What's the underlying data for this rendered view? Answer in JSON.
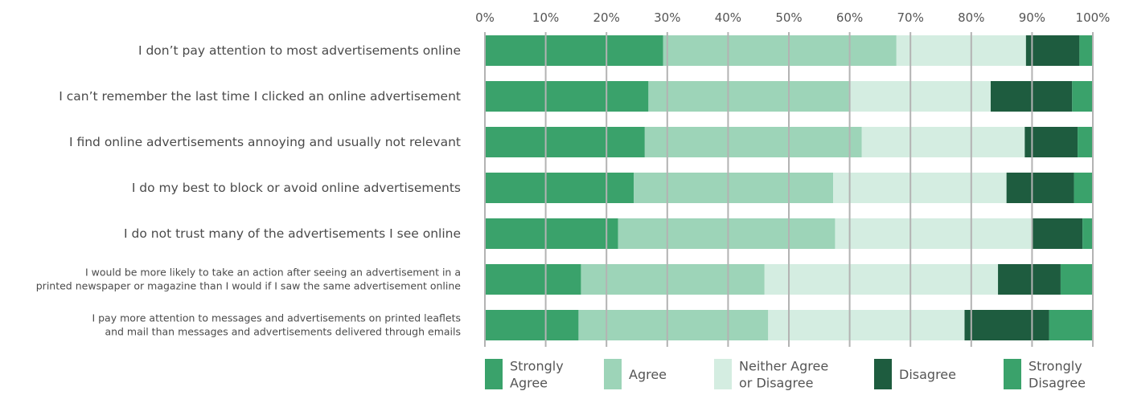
{
  "chart_data": {
    "type": "bar",
    "orientation": "horizontal",
    "stacked": true,
    "percent": true,
    "xlim": [
      0,
      100
    ],
    "ticks": [
      "0%",
      "10%",
      "20%",
      "30%",
      "40%",
      "50%",
      "60%",
      "70%",
      "80%",
      "90%",
      "100%"
    ],
    "grid": true,
    "legend_position": "bottom",
    "categories": [
      "I don’t pay attention to most advertisements online",
      "I can’t remember the last time I clicked an online advertisement",
      "I find online advertisements annoying and usually not relevant",
      "I do my best to block or avoid online advertisements",
      "I do not trust many of the advertisements I see online",
      "I would be more likely to take an action after seeing an advertisement in a printed newspaper or magazine than I would if I saw the same advertisement online",
      "I pay more attention to messages and advertisements on printed leaflets and mail than messages and advertisements delivered through emails"
    ],
    "category_lines": [
      [
        "I don’t pay attention to most advertisements online"
      ],
      [
        "I can’t remember the last time I clicked an online advertisement"
      ],
      [
        "I find online advertisements annoying and usually not relevant"
      ],
      [
        "I do my best to block or avoid online advertisements"
      ],
      [
        "I do not trust many of the advertisements I see online"
      ],
      [
        "I would be more likely to take an action after seeing an advertisement in a",
        "printed newspaper or magazine than I would if I saw the same advertisement online"
      ],
      [
        "I pay more attention to messages and advertisements on printed leaflets",
        "and mail than messages and advertisements delivered through emails"
      ]
    ],
    "series": [
      {
        "name": "Strongly Agree",
        "legend_lines": [
          "Strongly",
          "Agree"
        ],
        "color": "#3aa26b",
        "values": [
          29.3,
          26.9,
          26.3,
          24.5,
          21.9,
          15.8,
          15.4
        ]
      },
      {
        "name": "Agree",
        "legend_lines": [
          "Agree"
        ],
        "color": "#9dd4b8",
        "values": [
          38.4,
          33.0,
          35.7,
          32.8,
          35.7,
          30.2,
          31.2
        ]
      },
      {
        "name": "Neither Agree or Disagree",
        "legend_lines": [
          "Neither Agree",
          "or Disagree"
        ],
        "color": "#d4ede1",
        "values": [
          21.3,
          23.3,
          26.8,
          28.5,
          32.5,
          38.4,
          32.3
        ]
      },
      {
        "name": "Disagree",
        "legend_lines": [
          "Disagree"
        ],
        "color": "#1e5c3f",
        "values": [
          8.8,
          13.4,
          8.7,
          11.1,
          8.2,
          10.3,
          13.9
        ]
      },
      {
        "name": "Strongly Disagree",
        "legend_lines": [
          "Strongly",
          "Disagree"
        ],
        "color": "#3aa26b",
        "values": [
          2.2,
          3.4,
          2.5,
          3.1,
          1.7,
          5.3,
          7.2
        ]
      }
    ]
  }
}
